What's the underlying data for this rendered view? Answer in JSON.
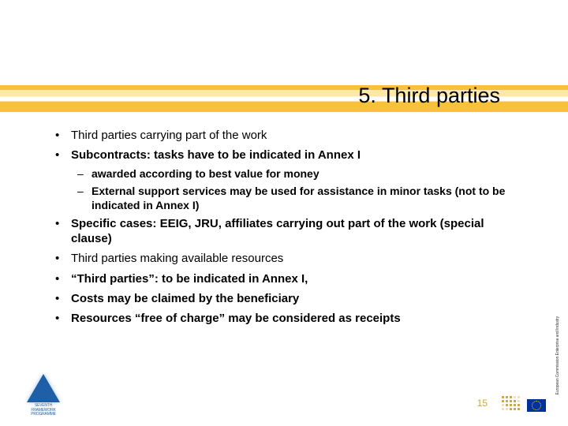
{
  "slide": {
    "title": "5. Third parties",
    "title_color": "#000000",
    "title_fontsize": 27,
    "band_colors": {
      "gold": "#f5c23a",
      "pale": "#fce9aa",
      "white": "#ffffff"
    },
    "background_color": "#ffffff",
    "body_fontsize": 15,
    "sub_fontsize": 14,
    "bullets": [
      {
        "level": 1,
        "bold": false,
        "text": "Third parties carrying part of the work"
      },
      {
        "level": 1,
        "bold": true,
        "text": "Subcontracts: tasks have to be indicated in Annex I"
      },
      {
        "level": 2,
        "bold": true,
        "text": "awarded according to best value for money"
      },
      {
        "level": 2,
        "bold": true,
        "text": "External support services may be used for assistance in minor tasks (not to be indicated in Annex I)"
      },
      {
        "level": 1,
        "bold": true,
        "text": "Specific cases: EEIG, JRU, affiliates carrying out part of the work (special clause)"
      },
      {
        "level": 1,
        "bold": false,
        "text": "Third parties making available resources"
      },
      {
        "level": 1,
        "bold": true,
        "text": "“Third parties”: to be indicated in Annex I,"
      },
      {
        "level": 1,
        "bold": true,
        "text": "Costs may be claimed by the beneficiary"
      },
      {
        "level": 1,
        "bold": true,
        "text": "Resources “free of charge” may be considered as receipts"
      }
    ],
    "page_number": "15",
    "page_number_color": "#c9a848",
    "fp7": {
      "triangle_color": "#1f5fa8",
      "label_line1": "SEVENTH FRAMEWORK",
      "label_line2": "PROGRAMME"
    },
    "eu_flag": {
      "bg": "#003399",
      "stars": "#ffcc00"
    },
    "ec_text_line1": "European Commission",
    "ec_text_line2": "Enterprise and Industry",
    "dots_color": "#c9a848"
  }
}
